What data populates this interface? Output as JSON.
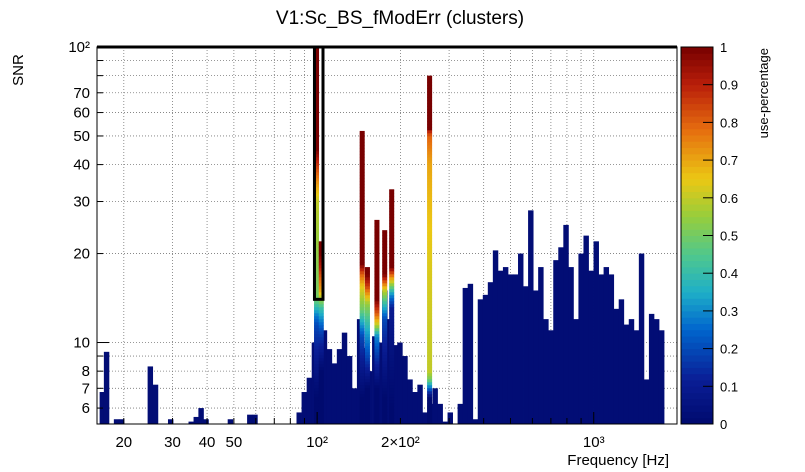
{
  "chart_data": {
    "type": "heatmap",
    "title": "V1:Sc_BS_fModErr (clusters)",
    "xlabel": "Frequency [Hz]",
    "ylabel": "SNR",
    "zlabel": "use-percentage",
    "x_scale": "log",
    "y_scale": "log",
    "xlim": [
      16,
      2000
    ],
    "ylim": [
      5.3,
      100
    ],
    "zlim": [
      0,
      1
    ],
    "grid": true,
    "x_ticks": [
      {
        "v": 20,
        "label": "20"
      },
      {
        "v": 30,
        "label": "30"
      },
      {
        "v": 40,
        "label": "40"
      },
      {
        "v": 50,
        "label": "50"
      },
      {
        "v": 100,
        "label": "10²"
      },
      {
        "v": 200,
        "label": "2×10²"
      },
      {
        "v": 1000,
        "label": "10³"
      }
    ],
    "y_ticks": [
      {
        "v": 6,
        "label": "6"
      },
      {
        "v": 7,
        "label": "7"
      },
      {
        "v": 8,
        "label": "8"
      },
      {
        "v": 10,
        "label": "10"
      },
      {
        "v": 20,
        "label": "20"
      },
      {
        "v": 30,
        "label": "30"
      },
      {
        "v": 40,
        "label": "40"
      },
      {
        "v": 50,
        "label": "50"
      },
      {
        "v": 60,
        "label": "60"
      },
      {
        "v": 70,
        "label": "70"
      },
      {
        "v": 100,
        "label": "10²"
      }
    ],
    "z_ticks": [
      "0",
      "0.1",
      "0.2",
      "0.3",
      "0.4",
      "0.5",
      "0.6",
      "0.7",
      "0.8",
      "0.9",
      "1"
    ],
    "bins": [
      {
        "f": 16.7,
        "snr": 6.8
      },
      {
        "f": 17.3,
        "snr": 9.3
      },
      {
        "f": 18.8,
        "snr": 5.5
      },
      {
        "f": 19.6,
        "snr": 5.5
      },
      {
        "f": 24.9,
        "snr": 8.3
      },
      {
        "f": 26.0,
        "snr": 7.2
      },
      {
        "f": 29.5,
        "snr": 5.5
      },
      {
        "f": 35.0,
        "snr": 5.4
      },
      {
        "f": 36.5,
        "snr": 5.6
      },
      {
        "f": 38.0,
        "snr": 6.0
      },
      {
        "f": 39.6,
        "snr": 5.5
      },
      {
        "f": 48.5,
        "snr": 5.5
      },
      {
        "f": 57.0,
        "snr": 5.7
      },
      {
        "f": 59.5,
        "snr": 5.7
      },
      {
        "f": 86.0,
        "snr": 5.8
      },
      {
        "f": 89.7,
        "snr": 6.8
      },
      {
        "f": 93.6,
        "snr": 7.6
      },
      {
        "f": 97.6,
        "snr": 10.0
      },
      {
        "f": 101.7,
        "snr": 13.0
      },
      {
        "f": 106.1,
        "snr": 11.0
      },
      {
        "f": 110.6,
        "snr": 9.5
      },
      {
        "f": 115.3,
        "snr": 8.5
      },
      {
        "f": 120.3,
        "snr": 9.5
      },
      {
        "f": 125.4,
        "snr": 10.8
      },
      {
        "f": 130.8,
        "snr": 9.0
      },
      {
        "f": 136.4,
        "snr": 7.0
      },
      {
        "f": 142.2,
        "snr": 12.0
      },
      {
        "f": 148.3,
        "snr": 9.6
      },
      {
        "f": 154.6,
        "snr": 8.0
      },
      {
        "f": 161.3,
        "snr": 10.5
      },
      {
        "f": 168.2,
        "snr": 10.0
      },
      {
        "f": 175.4,
        "snr": 15.0
      },
      {
        "f": 182.9,
        "snr": 12.0
      },
      {
        "f": 190.7,
        "snr": 9.8
      },
      {
        "f": 198.9,
        "snr": 10.0
      },
      {
        "f": 207.4,
        "snr": 9.0
      },
      {
        "f": 216.3,
        "snr": 7.5
      },
      {
        "f": 225.5,
        "snr": 6.8
      },
      {
        "f": 235.2,
        "snr": 7.2
      },
      {
        "f": 245.2,
        "snr": 5.8
      },
      {
        "f": 255.7,
        "snr": 6.2
      },
      {
        "f": 266.7,
        "snr": 7.0
      },
      {
        "f": 278.1,
        "snr": 6.2
      },
      {
        "f": 290.0,
        "snr": 5.4
      },
      {
        "f": 302.4,
        "snr": 5.8
      },
      {
        "f": 315.3,
        "snr": 5.3
      },
      {
        "f": 328.8,
        "snr": 6.2
      },
      {
        "f": 342.9,
        "snr": 15.3
      },
      {
        "f": 357.6,
        "snr": 15.8
      },
      {
        "f": 372.9,
        "snr": 5.5
      },
      {
        "f": 388.8,
        "snr": 14.0
      },
      {
        "f": 405.5,
        "snr": 14.5
      },
      {
        "f": 422.8,
        "snr": 16.0
      },
      {
        "f": 440.9,
        "snr": 20.5
      },
      {
        "f": 459.8,
        "snr": 17.5
      },
      {
        "f": 479.5,
        "snr": 18.0
      },
      {
        "f": 500.0,
        "snr": 17.0
      },
      {
        "f": 521.4,
        "snr": 17.0
      },
      {
        "f": 543.7,
        "snr": 20.0
      },
      {
        "f": 567.0,
        "snr": 15.5
      },
      {
        "f": 591.2,
        "snr": 28.0
      },
      {
        "f": 616.5,
        "snr": 15.0
      },
      {
        "f": 642.9,
        "snr": 18.0
      },
      {
        "f": 670.4,
        "snr": 12.0
      },
      {
        "f": 699.1,
        "snr": 11.0
      },
      {
        "f": 729.0,
        "snr": 19.0
      },
      {
        "f": 760.2,
        "snr": 21.0
      },
      {
        "f": 792.8,
        "snr": 25.0
      },
      {
        "f": 826.7,
        "snr": 18.0
      },
      {
        "f": 862.1,
        "snr": 12.0
      },
      {
        "f": 899.0,
        "snr": 20.0
      },
      {
        "f": 937.5,
        "snr": 23.0
      },
      {
        "f": 977.6,
        "snr": 17.5
      },
      {
        "f": 1019.4,
        "snr": 22.0
      },
      {
        "f": 1063.0,
        "snr": 17.0
      },
      {
        "f": 1108.5,
        "snr": 18.0
      },
      {
        "f": 1156.0,
        "snr": 17.0
      },
      {
        "f": 1205.5,
        "snr": 13.0
      },
      {
        "f": 1257.1,
        "snr": 14.0
      },
      {
        "f": 1310.9,
        "snr": 11.5
      },
      {
        "f": 1367.0,
        "snr": 12.0
      },
      {
        "f": 1425.5,
        "snr": 11.0
      },
      {
        "f": 1486.5,
        "snr": 20.0
      },
      {
        "f": 1550.1,
        "snr": 7.5
      },
      {
        "f": 1616.5,
        "snr": 12.5
      },
      {
        "f": 1685.7,
        "snr": 12.0
      },
      {
        "f": 1757.8,
        "snr": 11.0
      }
    ],
    "spikes": [
      {
        "f": 99.5,
        "snr_max": 100,
        "stops": [
          [
            6.5,
            0.0
          ],
          [
            11.5,
            0.2
          ],
          [
            12.5,
            0.3
          ],
          [
            14.0,
            0.5
          ],
          [
            30,
            0.6
          ],
          [
            45,
            1.0
          ]
        ]
      },
      {
        "f": 103.5,
        "snr_max": 22,
        "stops": [
          [
            8.0,
            0.0
          ],
          [
            11.0,
            0.2
          ],
          [
            13.0,
            0.4
          ],
          [
            15.0,
            0.7
          ],
          [
            18,
            0.9
          ],
          [
            20,
            1.0
          ]
        ]
      },
      {
        "f": 145.5,
        "snr_max": 52,
        "stops": [
          [
            6.5,
            0.0
          ],
          [
            10.5,
            0.2
          ],
          [
            13.0,
            0.5
          ],
          [
            15.5,
            0.65
          ],
          [
            17.0,
            0.8
          ],
          [
            18.5,
            1.0
          ]
        ]
      },
      {
        "f": 152.0,
        "snr_max": 18,
        "stops": [
          [
            7.0,
            0.0
          ],
          [
            9.0,
            0.2
          ],
          [
            11.0,
            0.35
          ],
          [
            13.5,
            0.55
          ],
          [
            15.5,
            0.85
          ],
          [
            17.0,
            1.0
          ]
        ]
      },
      {
        "f": 164.5,
        "snr_max": 26,
        "stops": [
          [
            7.0,
            0.0
          ],
          [
            10.5,
            0.3
          ],
          [
            11.5,
            0.6
          ],
          [
            12.5,
            0.8
          ],
          [
            14.0,
            1.0
          ]
        ]
      },
      {
        "f": 175.5,
        "snr_max": 24,
        "stops": [
          [
            6.5,
            0.0
          ],
          [
            12.0,
            0.2
          ],
          [
            13.5,
            0.4
          ],
          [
            15.0,
            0.6
          ],
          [
            16.0,
            0.8
          ],
          [
            17.0,
            1.0
          ]
        ]
      },
      {
        "f": 186.0,
        "snr_max": 33,
        "stops": [
          [
            6.0,
            0.0
          ],
          [
            13.0,
            0.1
          ],
          [
            14.5,
            0.3
          ],
          [
            16.0,
            0.6
          ],
          [
            17.0,
            0.8
          ],
          [
            18.0,
            1.0
          ]
        ]
      },
      {
        "f": 255.0,
        "snr_max": 80,
        "stops": [
          [
            6.5,
            0.0
          ],
          [
            7.5,
            0.5
          ],
          [
            8.0,
            0.6
          ],
          [
            40,
            0.7
          ],
          [
            50,
            0.8
          ],
          [
            52,
            0.9
          ],
          [
            53,
            1.0
          ]
        ]
      }
    ],
    "highlight_box": {
      "f": [
        97.8,
        105.0
      ],
      "snr": [
        14.0,
        100
      ]
    }
  }
}
